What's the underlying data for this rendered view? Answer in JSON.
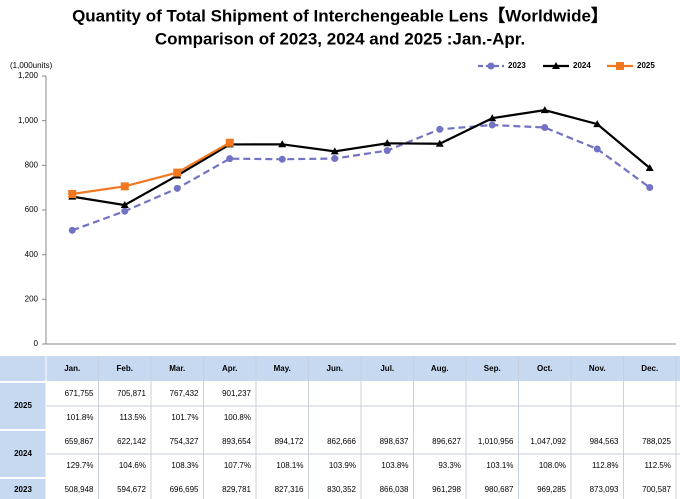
{
  "chart_data": {
    "type": "line",
    "title": "Quantity of Total Shipment of Interchengeable Lens【Worldwide】",
    "subtitle": "Comparison of 2023, 2024 and 2025 :Jan.-Apr.",
    "y_label": "(1,000units)",
    "categories": [
      "Jan.",
      "Feb.",
      "Mar.",
      "Apr.",
      "May.",
      "Jun.",
      "Jul.",
      "Aug.",
      "Sep.",
      "Oct.",
      "Nov.",
      "Dec."
    ],
    "ylim": [
      0,
      1200
    ],
    "yticks": [
      0,
      200,
      400,
      600,
      800,
      {
        "value": 1000,
        "label": "1,000"
      },
      {
        "value": 1200,
        "label": "1,200"
      }
    ],
    "legend": "top-right",
    "series": [
      {
        "name": "2023",
        "color": "#7373c4",
        "dash": true,
        "marker": "circle",
        "values": [
          508.948,
          594.672,
          696.695,
          829.781,
          827.316,
          830.352,
          866.038,
          961.298,
          980.687,
          969.285,
          873.093,
          700.587
        ],
        "value_labels": [
          "508,948",
          "594,672",
          "696,695",
          "829,781",
          "827,316",
          "830,352",
          "866,038",
          "961,298",
          "980,687",
          "969,285",
          "873,093",
          "700,587"
        ]
      },
      {
        "name": "2024",
        "color": "#000000",
        "dash": false,
        "marker": "triangle",
        "values": [
          659.867,
          622.142,
          754.327,
          893.654,
          894.172,
          862.666,
          898.637,
          896.627,
          1010.956,
          1047.092,
          984.563,
          788.025
        ],
        "value_labels": [
          "659,867",
          "622,142",
          "754,327",
          "893,654",
          "894,172",
          "862,666",
          "898,637",
          "896,627",
          "1,010,956",
          "1,047,092",
          "984,563",
          "788,025"
        ],
        "changes": [
          "129.7%",
          "104.6%",
          "108.3%",
          "107.7%",
          "108.1%",
          "103.9%",
          "103.8%",
          "93.3%",
          "103.1%",
          "108.0%",
          "112.8%",
          "112.5%"
        ]
      },
      {
        "name": "2025",
        "color": "#f07820",
        "dash": false,
        "marker": "square",
        "values": [
          671.755,
          705.871,
          767.432,
          901.237,
          null,
          null,
          null,
          null,
          null,
          null,
          null,
          null
        ],
        "value_labels": [
          "671,755",
          "705,871",
          "767,432",
          "901,237",
          null,
          null,
          null,
          null,
          null,
          null,
          null,
          null
        ],
        "changes": [
          "101.8%",
          "113.5%",
          "101.7%",
          "100.8%",
          null,
          null,
          null,
          null,
          null,
          null,
          null,
          null
        ]
      }
    ]
  }
}
